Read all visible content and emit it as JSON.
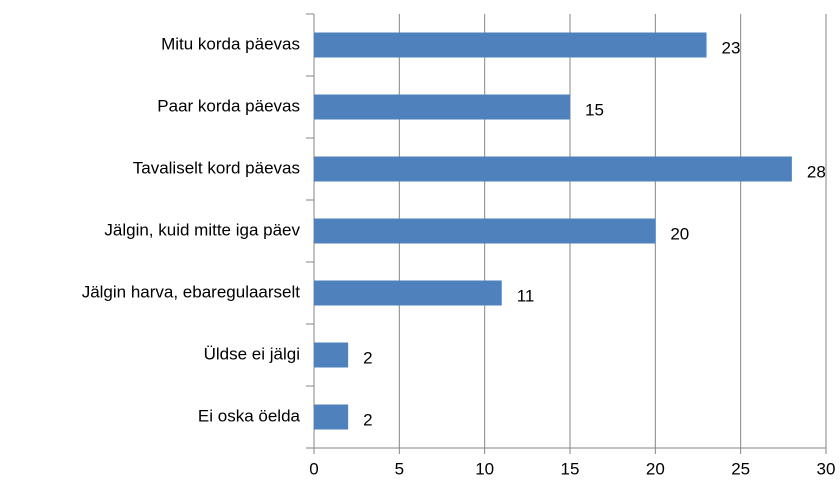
{
  "chart_data": {
    "type": "barh",
    "categories": [
      "Mitu korda päevas",
      "Paar korda päevas",
      "Tavaliselt kord päevas",
      "Jälgin, kuid mitte iga päev",
      "Jälgin harva, ebaregulaarselt",
      "Üldse ei jälgi",
      "Ei oska öelda"
    ],
    "values": [
      23,
      15,
      28,
      20,
      11,
      2,
      2
    ],
    "color": "#4f81bd",
    "xlim": [
      0,
      30
    ],
    "xticks": [
      0,
      5,
      10,
      15,
      20,
      25,
      30
    ],
    "grid": true
  }
}
